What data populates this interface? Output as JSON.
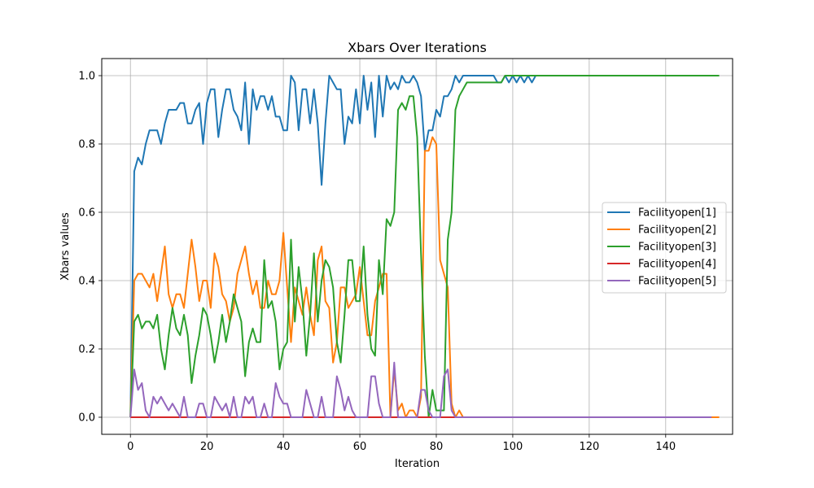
{
  "chart_data": {
    "type": "line",
    "title": "Xbars Over Iterations",
    "xlabel": "Iteration",
    "ylabel": "Xbars values",
    "xlim": [
      -7.5,
      157.5
    ],
    "ylim": [
      -0.05,
      1.05
    ],
    "xticks": [
      0,
      20,
      40,
      60,
      80,
      100,
      120,
      140
    ],
    "yticks": [
      0.0,
      0.2,
      0.4,
      0.6,
      0.8,
      1.0
    ],
    "xtick_labels": [
      "0",
      "20",
      "40",
      "60",
      "80",
      "100",
      "120",
      "140"
    ],
    "ytick_labels": [
      "0.0",
      "0.2",
      "0.4",
      "0.6",
      "0.8",
      "1.0"
    ],
    "grid": true,
    "legend_position": "center-right",
    "series": [
      {
        "name": "Facilityopen[1]",
        "color": "#1f77b4",
        "y": [
          0.0,
          0.72,
          0.76,
          0.74,
          0.8,
          0.84,
          0.84,
          0.84,
          0.8,
          0.86,
          0.9,
          0.9,
          0.9,
          0.92,
          0.92,
          0.86,
          0.86,
          0.9,
          0.92,
          0.8,
          0.92,
          0.96,
          0.96,
          0.82,
          0.9,
          0.96,
          0.96,
          0.9,
          0.88,
          0.84,
          0.98,
          0.8,
          0.96,
          0.9,
          0.94,
          0.94,
          0.9,
          0.94,
          0.88,
          0.88,
          0.84,
          0.84,
          1.0,
          0.98,
          0.84,
          0.96,
          0.96,
          0.86,
          0.96,
          0.86,
          0.68,
          0.86,
          1.0,
          0.98,
          0.96,
          0.96,
          0.8,
          0.88,
          0.86,
          0.96,
          0.86,
          1.0,
          0.9,
          0.98,
          0.82,
          1.0,
          0.88,
          1.0,
          0.96,
          0.98,
          0.96,
          1.0,
          0.98,
          0.98,
          1.0,
          0.98,
          0.94,
          0.78,
          0.84,
          0.84,
          0.9,
          0.88,
          0.94,
          0.94,
          0.96,
          1.0,
          0.98,
          1.0,
          1.0,
          1.0,
          1.0,
          1.0,
          1.0,
          1.0,
          1.0,
          1.0,
          0.98,
          0.98,
          1.0,
          0.98,
          1.0,
          0.98,
          1.0,
          0.98,
          1.0,
          0.98,
          1.0,
          1.0,
          1.0,
          1.0,
          1.0,
          1.0,
          1.0,
          1.0,
          1.0,
          1.0,
          1.0,
          1.0,
          1.0,
          1.0,
          1.0,
          1.0,
          1.0,
          1.0,
          1.0,
          1.0,
          1.0,
          1.0,
          1.0,
          1.0,
          1.0,
          1.0,
          1.0,
          1.0,
          1.0,
          1.0,
          1.0,
          1.0,
          1.0,
          1.0,
          1.0,
          1.0,
          1.0,
          1.0,
          1.0,
          1.0,
          1.0,
          1.0,
          1.0,
          1.0,
          1.0
        ]
      },
      {
        "name": "Facilityopen[2]",
        "color": "#ff7f0e",
        "y": [
          0.0,
          0.4,
          0.42,
          0.42,
          0.4,
          0.38,
          0.42,
          0.34,
          0.42,
          0.5,
          0.36,
          0.32,
          0.36,
          0.36,
          0.32,
          0.42,
          0.52,
          0.44,
          0.34,
          0.4,
          0.4,
          0.32,
          0.48,
          0.44,
          0.36,
          0.34,
          0.28,
          0.32,
          0.42,
          0.46,
          0.5,
          0.42,
          0.36,
          0.4,
          0.32,
          0.32,
          0.4,
          0.36,
          0.36,
          0.4,
          0.54,
          0.38,
          0.22,
          0.38,
          0.34,
          0.3,
          0.38,
          0.3,
          0.24,
          0.46,
          0.5,
          0.34,
          0.32,
          0.16,
          0.22,
          0.38,
          0.38,
          0.32,
          0.34,
          0.36,
          0.44,
          0.34,
          0.24,
          0.24,
          0.34,
          0.38,
          0.42,
          0.42,
          0.0,
          0.14,
          0.02,
          0.04,
          0.0,
          0.02,
          0.02,
          0.0,
          0.06,
          0.78,
          0.78,
          0.82,
          0.8,
          0.46,
          0.42,
          0.38,
          0.04,
          0.0,
          0.02,
          0.0,
          0.0,
          0.0,
          0.0,
          0.0,
          0.0,
          0.0,
          0.0,
          0.0,
          0.0,
          0.0,
          0.0,
          0.0,
          0.0,
          0.0,
          0.0,
          0.0,
          0.0,
          0.0,
          0.0,
          0.0,
          0.0,
          0.0,
          0.0,
          0.0,
          0.0,
          0.0,
          0.0,
          0.0,
          0.0,
          0.0,
          0.0,
          0.0,
          0.0,
          0.0,
          0.0,
          0.0,
          0.0,
          0.0,
          0.0,
          0.0,
          0.0,
          0.0,
          0.0,
          0.0,
          0.0,
          0.0,
          0.0,
          0.0,
          0.0,
          0.0,
          0.0,
          0.0,
          0.0,
          0.0,
          0.0,
          0.0,
          0.0,
          0.0,
          0.0,
          0.0,
          0.0,
          0.0,
          0.0,
          0.0,
          0.0,
          0.0,
          0.0
        ]
      },
      {
        "name": "Facilityopen[3]",
        "color": "#2ca02c",
        "y": [
          0.0,
          0.28,
          0.3,
          0.26,
          0.28,
          0.28,
          0.26,
          0.3,
          0.2,
          0.14,
          0.24,
          0.32,
          0.26,
          0.24,
          0.3,
          0.24,
          0.1,
          0.18,
          0.24,
          0.32,
          0.3,
          0.24,
          0.16,
          0.22,
          0.3,
          0.22,
          0.28,
          0.36,
          0.32,
          0.28,
          0.12,
          0.22,
          0.26,
          0.22,
          0.22,
          0.46,
          0.32,
          0.34,
          0.28,
          0.14,
          0.2,
          0.22,
          0.52,
          0.28,
          0.44,
          0.34,
          0.18,
          0.3,
          0.48,
          0.28,
          0.4,
          0.46,
          0.44,
          0.38,
          0.22,
          0.16,
          0.3,
          0.46,
          0.46,
          0.34,
          0.34,
          0.5,
          0.3,
          0.2,
          0.18,
          0.46,
          0.36,
          0.58,
          0.56,
          0.6,
          0.9,
          0.92,
          0.9,
          0.94,
          0.94,
          0.82,
          0.48,
          0.18,
          0.0,
          0.08,
          0.02,
          0.02,
          0.02,
          0.52,
          0.6,
          0.9,
          0.94,
          0.96,
          0.98,
          0.98,
          0.98,
          0.98,
          0.98,
          0.98,
          0.98,
          0.98,
          0.98,
          0.98,
          1.0,
          1.0,
          1.0,
          1.0,
          1.0,
          1.0,
          1.0,
          1.0,
          1.0,
          1.0,
          1.0,
          1.0,
          1.0,
          1.0,
          1.0,
          1.0,
          1.0,
          1.0,
          1.0,
          1.0,
          1.0,
          1.0,
          1.0,
          1.0,
          1.0,
          1.0,
          1.0,
          1.0,
          1.0,
          1.0,
          1.0,
          1.0,
          1.0,
          1.0,
          1.0,
          1.0,
          1.0,
          1.0,
          1.0,
          1.0,
          1.0,
          1.0,
          1.0,
          1.0,
          1.0,
          1.0,
          1.0,
          1.0,
          1.0,
          1.0,
          1.0,
          1.0,
          1.0,
          1.0,
          1.0,
          1.0,
          1.0
        ]
      },
      {
        "name": "Facilityopen[4]",
        "color": "#d62728",
        "y": [
          0.0,
          0.0,
          0.0,
          0.0,
          0.0,
          0.0,
          0.0,
          0.0,
          0.0,
          0.0,
          0.0,
          0.0,
          0.0,
          0.0,
          0.0,
          0.0,
          0.0,
          0.0,
          0.0,
          0.0,
          0.0,
          0.0,
          0.0,
          0.0,
          0.0,
          0.0,
          0.0,
          0.0,
          0.0,
          0.0,
          0.0,
          0.0,
          0.0,
          0.0,
          0.0,
          0.0,
          0.0,
          0.0,
          0.0,
          0.0,
          0.0,
          0.0,
          0.0,
          0.0,
          0.0,
          0.0,
          0.0,
          0.0,
          0.0,
          0.0,
          0.0,
          0.0,
          0.0,
          0.0,
          0.0,
          0.0,
          0.0,
          0.0,
          0.0,
          0.0,
          0.0,
          0.0,
          0.0,
          0.0,
          0.0,
          0.0,
          0.0,
          0.0,
          0.0,
          0.0,
          0.0,
          0.0,
          0.0,
          0.0,
          0.0,
          0.0,
          0.0,
          0.0,
          0.0,
          0.0,
          0.0,
          0.0,
          0.0,
          0.0,
          0.0,
          0.0,
          0.0,
          0.0,
          0.0,
          0.0,
          0.0,
          0.0,
          0.0,
          0.0,
          0.0,
          0.0,
          0.0,
          0.0,
          0.0,
          0.0,
          0.0,
          0.0,
          0.0,
          0.0,
          0.0,
          0.0,
          0.0,
          0.0,
          0.0,
          0.0,
          0.0,
          0.0,
          0.0,
          0.0,
          0.0,
          0.0,
          0.0,
          0.0,
          0.0,
          0.0,
          0.0,
          0.0,
          0.0,
          0.0,
          0.0,
          0.0,
          0.0,
          0.0,
          0.0,
          0.0,
          0.0,
          0.0,
          0.0,
          0.0,
          0.0,
          0.0,
          0.0,
          0.0,
          0.0,
          0.0,
          0.0,
          0.0,
          0.0,
          0.0,
          0.0,
          0.0,
          0.0,
          0.0,
          0.0,
          0.0,
          0.0
        ]
      },
      {
        "name": "Facilityopen[5]",
        "color": "#9467bd",
        "y": [
          0.0,
          0.14,
          0.08,
          0.1,
          0.02,
          0.0,
          0.06,
          0.04,
          0.06,
          0.04,
          0.02,
          0.04,
          0.02,
          0.0,
          0.06,
          0.0,
          0.0,
          0.0,
          0.04,
          0.04,
          0.0,
          0.0,
          0.06,
          0.04,
          0.02,
          0.04,
          0.0,
          0.06,
          0.0,
          0.0,
          0.06,
          0.04,
          0.06,
          0.0,
          0.0,
          0.04,
          0.0,
          0.0,
          0.1,
          0.06,
          0.04,
          0.04,
          0.0,
          0.0,
          0.0,
          0.0,
          0.08,
          0.04,
          0.0,
          0.0,
          0.06,
          0.0,
          0.0,
          0.0,
          0.12,
          0.08,
          0.02,
          0.06,
          0.02,
          0.0,
          0.0,
          0.0,
          0.0,
          0.12,
          0.12,
          0.04,
          0.0,
          0.0,
          0.0,
          0.16,
          0.0,
          0.0,
          0.0,
          0.0,
          0.0,
          0.0,
          0.08,
          0.08,
          0.02,
          0.0,
          0.0,
          0.0,
          0.12,
          0.14,
          0.02,
          0.0,
          0.0,
          0.0,
          0.0,
          0.0,
          0.0,
          0.0,
          0.0,
          0.0,
          0.0,
          0.0,
          0.0,
          0.0,
          0.0,
          0.0,
          0.0,
          0.0,
          0.0,
          0.0,
          0.0,
          0.0,
          0.0,
          0.0,
          0.0,
          0.0,
          0.0,
          0.0,
          0.0,
          0.0,
          0.0,
          0.0,
          0.0,
          0.0,
          0.0,
          0.0,
          0.0,
          0.0,
          0.0,
          0.0,
          0.0,
          0.0,
          0.0,
          0.0,
          0.0,
          0.0,
          0.0,
          0.0,
          0.0,
          0.0,
          0.0,
          0.0,
          0.0,
          0.0,
          0.0,
          0.0,
          0.0,
          0.0,
          0.0,
          0.0,
          0.0,
          0.0,
          0.0,
          0.0,
          0.0,
          0.0,
          0.0,
          0.0,
          0.0
        ]
      }
    ]
  }
}
